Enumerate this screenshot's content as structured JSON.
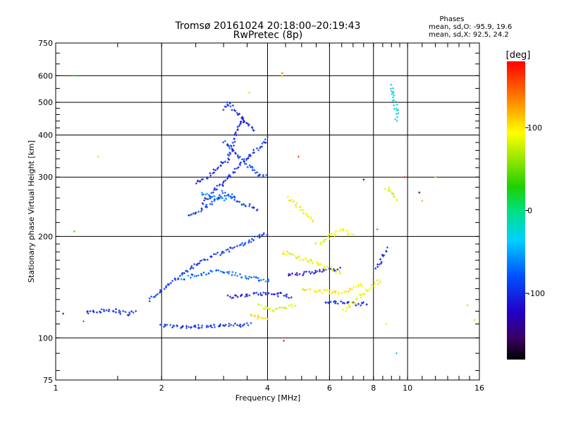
{
  "chart_data": {
    "type": "scatter",
    "title": "Tromsø 20161024 20:18:00–20:19:43",
    "subtitle": "RwPretec (8p)",
    "xlabel": "Frequency [MHz]",
    "ylabel": "Stationary phase Virtual Height [km]",
    "xscale": "log",
    "yscale": "log",
    "xlim": [
      1,
      16
    ],
    "ylim": [
      75,
      750
    ],
    "x_ticks": [
      1,
      2,
      4,
      6,
      8,
      10,
      16
    ],
    "y_ticks": [
      75,
      100,
      200,
      300,
      400,
      500,
      600,
      750
    ],
    "grid": true,
    "phase_stats": {
      "heading": "Phases",
      "o_line": "mean, sd,O: -95.9, 19.6",
      "x_line": "mean, sd,X:  92.5, 24.2"
    },
    "colorbar": {
      "label": "[deg]",
      "range": [
        -180,
        180
      ],
      "ticks": [
        100,
        0,
        -100
      ],
      "colormap": "rainbow"
    },
    "colors": {
      "o_mode": "#1a1acc",
      "x_mode": "#e0d000"
    },
    "traces": [
      {
        "mode": "O",
        "phase": -100,
        "points": [
          [
            1.22,
            120
          ],
          [
            1.28,
            119
          ],
          [
            1.4,
            121
          ],
          [
            1.5,
            120
          ],
          [
            1.6,
            118
          ],
          [
            1.7,
            121
          ]
        ]
      },
      {
        "mode": "O",
        "phase": -95,
        "points": [
          [
            2.0,
            109
          ],
          [
            2.2,
            108
          ],
          [
            2.4,
            108
          ],
          [
            2.6,
            108
          ],
          [
            2.8,
            108
          ],
          [
            3.0,
            109
          ],
          [
            3.2,
            109
          ],
          [
            3.4,
            109
          ],
          [
            3.6,
            110
          ]
        ]
      },
      {
        "mode": "O",
        "phase": -105,
        "points": [
          [
            3.1,
            132
          ],
          [
            3.4,
            134
          ],
          [
            3.8,
            135
          ],
          [
            4.2,
            135
          ],
          [
            4.5,
            134
          ],
          [
            4.7,
            132
          ]
        ]
      },
      {
        "mode": "O",
        "phase": -110,
        "points": [
          [
            4.6,
            153
          ],
          [
            5.0,
            155
          ],
          [
            5.5,
            157
          ],
          [
            6.0,
            160
          ],
          [
            6.5,
            160
          ]
        ]
      },
      {
        "mode": "O",
        "phase": -100,
        "points": [
          [
            5.8,
            128
          ],
          [
            6.5,
            127
          ],
          [
            7.2,
            126
          ],
          [
            7.8,
            127
          ]
        ]
      },
      {
        "mode": "O",
        "phase": -95,
        "points": [
          [
            1.85,
            130
          ],
          [
            2.0,
            140
          ],
          [
            2.2,
            150
          ],
          [
            2.4,
            160
          ],
          [
            2.6,
            170
          ],
          [
            2.8,
            175
          ],
          [
            3.0,
            180
          ],
          [
            3.2,
            185
          ],
          [
            3.4,
            190
          ],
          [
            3.6,
            195
          ],
          [
            3.8,
            200
          ],
          [
            4.0,
            205
          ]
        ]
      },
      {
        "mode": "O",
        "phase": -100,
        "points": [
          [
            2.6,
            250
          ],
          [
            2.8,
            270
          ],
          [
            3.0,
            290
          ],
          [
            3.2,
            310
          ],
          [
            3.4,
            330
          ],
          [
            3.6,
            350
          ],
          [
            3.8,
            370
          ],
          [
            4.0,
            390
          ]
        ]
      },
      {
        "mode": "O",
        "phase": -105,
        "points": [
          [
            2.5,
            290
          ],
          [
            2.7,
            300
          ],
          [
            2.9,
            320
          ],
          [
            3.1,
            340
          ],
          [
            3.2,
            380
          ],
          [
            3.3,
            420
          ],
          [
            3.4,
            460
          ]
        ]
      },
      {
        "mode": "O",
        "phase": -100,
        "points": [
          [
            3.0,
            480
          ],
          [
            3.1,
            500
          ],
          [
            3.3,
            460
          ],
          [
            3.5,
            430
          ],
          [
            3.7,
            410
          ]
        ]
      },
      {
        "mode": "O",
        "phase": -90,
        "points": [
          [
            2.4,
            230
          ],
          [
            2.6,
            240
          ],
          [
            2.8,
            255
          ],
          [
            3.0,
            270
          ],
          [
            3.2,
            260
          ],
          [
            3.4,
            250
          ],
          [
            3.6,
            245
          ],
          [
            3.8,
            240
          ]
        ]
      },
      {
        "mode": "O",
        "phase": -60,
        "points": [
          [
            2.6,
            270
          ],
          [
            2.8,
            262
          ],
          [
            3.0,
            258
          ],
          [
            3.2,
            266
          ]
        ]
      },
      {
        "mode": "O",
        "phase": -70,
        "points": [
          [
            2.3,
            150
          ],
          [
            2.6,
            155
          ],
          [
            2.9,
            158
          ],
          [
            3.2,
            155
          ],
          [
            3.6,
            150
          ],
          [
            4.1,
            148
          ]
        ]
      },
      {
        "mode": "X",
        "phase": 95,
        "points": [
          [
            4.6,
            260
          ],
          [
            4.8,
            250
          ],
          [
            5.0,
            240
          ],
          [
            5.2,
            230
          ],
          [
            5.4,
            220
          ]
        ]
      },
      {
        "mode": "X",
        "phase": 90,
        "points": [
          [
            4.4,
            180
          ],
          [
            4.8,
            175
          ],
          [
            5.2,
            170
          ],
          [
            5.6,
            165
          ],
          [
            6.0,
            160
          ],
          [
            6.5,
            155
          ]
        ]
      },
      {
        "mode": "X",
        "phase": 100,
        "points": [
          [
            5.0,
            140
          ],
          [
            5.5,
            138
          ],
          [
            6.0,
            137
          ],
          [
            6.5,
            136
          ],
          [
            7.0,
            140
          ],
          [
            7.5,
            145
          ]
        ]
      },
      {
        "mode": "X",
        "phase": 85,
        "points": [
          [
            3.8,
            125
          ],
          [
            4.1,
            120
          ],
          [
            4.4,
            122
          ],
          [
            4.8,
            126
          ]
        ]
      },
      {
        "mode": "X",
        "phase": 105,
        "points": [
          [
            3.6,
            118
          ],
          [
            3.8,
            115
          ],
          [
            4.0,
            113
          ]
        ]
      },
      {
        "mode": "X",
        "phase": 95,
        "points": [
          [
            6.6,
            120
          ],
          [
            7.2,
            130
          ],
          [
            7.8,
            140
          ],
          [
            8.4,
            150
          ]
        ]
      },
      {
        "mode": "X",
        "phase": 90,
        "points": [
          [
            5.5,
            190
          ],
          [
            6.0,
            200
          ],
          [
            6.5,
            210
          ],
          [
            7.0,
            200
          ]
        ]
      },
      {
        "mode": "X",
        "phase": 80,
        "points": [
          [
            8.7,
            280
          ],
          [
            9.0,
            270
          ],
          [
            9.2,
            260
          ],
          [
            9.4,
            255
          ]
        ]
      },
      {
        "mode": "O",
        "phase": -30,
        "points": [
          [
            9.0,
            560
          ],
          [
            9.1,
            520
          ],
          [
            9.2,
            500
          ],
          [
            9.3,
            470
          ],
          [
            9.35,
            440
          ]
        ]
      },
      {
        "mode": "O",
        "phase": -100,
        "points": [
          [
            8.2,
            160
          ],
          [
            8.4,
            170
          ],
          [
            8.6,
            180
          ],
          [
            8.8,
            185
          ]
        ]
      },
      {
        "mode": "O",
        "phase": -90,
        "points": [
          [
            3.0,
            380
          ],
          [
            3.2,
            360
          ],
          [
            3.4,
            340
          ],
          [
            3.6,
            320
          ],
          [
            3.8,
            305
          ],
          [
            4.0,
            300
          ]
        ]
      }
    ],
    "isolated_points": [
      {
        "x": 1.13,
        "y": 600,
        "phase": 20
      },
      {
        "x": 1.13,
        "y": 207,
        "phase": 40
      },
      {
        "x": 1.05,
        "y": 118,
        "phase": -110
      },
      {
        "x": 1.2,
        "y": 112,
        "phase": -60
      },
      {
        "x": 1.32,
        "y": 345,
        "phase": 110
      },
      {
        "x": 4.4,
        "y": 610,
        "phase": 150
      },
      {
        "x": 4.4,
        "y": 598,
        "phase": 100
      },
      {
        "x": 4.0,
        "y": 395,
        "phase": -100
      },
      {
        "x": 4.45,
        "y": 98,
        "phase": 170
      },
      {
        "x": 4.9,
        "y": 345,
        "phase": 160
      },
      {
        "x": 7.5,
        "y": 295,
        "phase": -150
      },
      {
        "x": 9.3,
        "y": 90,
        "phase": -40
      },
      {
        "x": 9.8,
        "y": 300,
        "phase": 170
      },
      {
        "x": 10.8,
        "y": 270,
        "phase": -160
      },
      {
        "x": 11.0,
        "y": 255,
        "phase": 120
      },
      {
        "x": 12.0,
        "y": 300,
        "phase": 110
      },
      {
        "x": 14.8,
        "y": 125,
        "phase": 110
      },
      {
        "x": 15.5,
        "y": 113,
        "phase": 110
      },
      {
        "x": 8.2,
        "y": 210,
        "phase": 150
      },
      {
        "x": 8.7,
        "y": 110,
        "phase": 100
      },
      {
        "x": 3.55,
        "y": 535,
        "phase": 110
      }
    ]
  }
}
